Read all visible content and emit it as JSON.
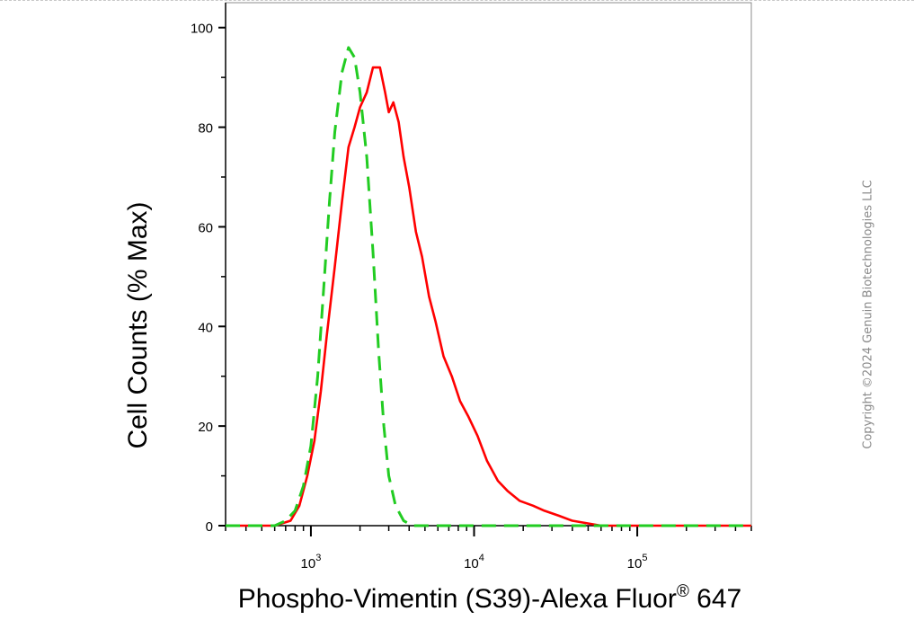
{
  "chart_data": {
    "type": "line",
    "title": "",
    "xlabel": "Phospho-Vimentin (S39)-Alexa Fluor",
    "xlabel_superscript": "®",
    "xlabel_suffix": " 647",
    "ylabel": "Cell Counts (% Max)",
    "xscale": "log",
    "xlim": [
      300,
      500000
    ],
    "ylim": [
      0,
      105
    ],
    "x_tick_labels": [
      {
        "base": "10",
        "exp": "3",
        "value": 1000
      },
      {
        "base": "10",
        "exp": "4",
        "value": 10000
      },
      {
        "base": "10",
        "exp": "5",
        "value": 100000
      }
    ],
    "y_ticks": [
      0,
      20,
      40,
      60,
      80,
      100
    ],
    "grid": false,
    "legend": "none",
    "series": [
      {
        "color": "#ff0000",
        "style": "solid",
        "points": [
          [
            300,
            0
          ],
          [
            600,
            0
          ],
          [
            750,
            1
          ],
          [
            850,
            4
          ],
          [
            950,
            10
          ],
          [
            1050,
            17
          ],
          [
            1150,
            27
          ],
          [
            1250,
            38
          ],
          [
            1400,
            52
          ],
          [
            1550,
            65
          ],
          [
            1700,
            76
          ],
          [
            1850,
            80
          ],
          [
            2000,
            84
          ],
          [
            2200,
            87
          ],
          [
            2400,
            92
          ],
          [
            2650,
            92
          ],
          [
            2850,
            87
          ],
          [
            3000,
            83
          ],
          [
            3200,
            85
          ],
          [
            3450,
            81
          ],
          [
            3700,
            74
          ],
          [
            4000,
            68
          ],
          [
            4400,
            59
          ],
          [
            4800,
            54
          ],
          [
            5300,
            46
          ],
          [
            5800,
            41
          ],
          [
            6500,
            34
          ],
          [
            7300,
            30
          ],
          [
            8200,
            25
          ],
          [
            9200,
            22
          ],
          [
            10500,
            18
          ],
          [
            12000,
            13
          ],
          [
            14000,
            9
          ],
          [
            16000,
            7
          ],
          [
            19000,
            5
          ],
          [
            23000,
            4
          ],
          [
            27000,
            3
          ],
          [
            33000,
            2
          ],
          [
            40000,
            1
          ],
          [
            60000,
            0
          ],
          [
            500000,
            0
          ]
        ]
      },
      {
        "color": "#22cc22",
        "style": "dashed",
        "points": [
          [
            300,
            0
          ],
          [
            600,
            0
          ],
          [
            700,
            1
          ],
          [
            800,
            3
          ],
          [
            900,
            8
          ],
          [
            1000,
            16
          ],
          [
            1100,
            30
          ],
          [
            1200,
            48
          ],
          [
            1300,
            65
          ],
          [
            1400,
            79
          ],
          [
            1550,
            91
          ],
          [
            1700,
            96
          ],
          [
            1850,
            94
          ],
          [
            2000,
            87
          ],
          [
            2200,
            74
          ],
          [
            2400,
            55
          ],
          [
            2600,
            35
          ],
          [
            2800,
            20
          ],
          [
            3000,
            10
          ],
          [
            3300,
            4
          ],
          [
            3700,
            1
          ],
          [
            4200,
            0
          ],
          [
            500000,
            0
          ]
        ]
      }
    ]
  },
  "watermark": "Copyright ©2024 Genuin Biotechnologies LLC"
}
